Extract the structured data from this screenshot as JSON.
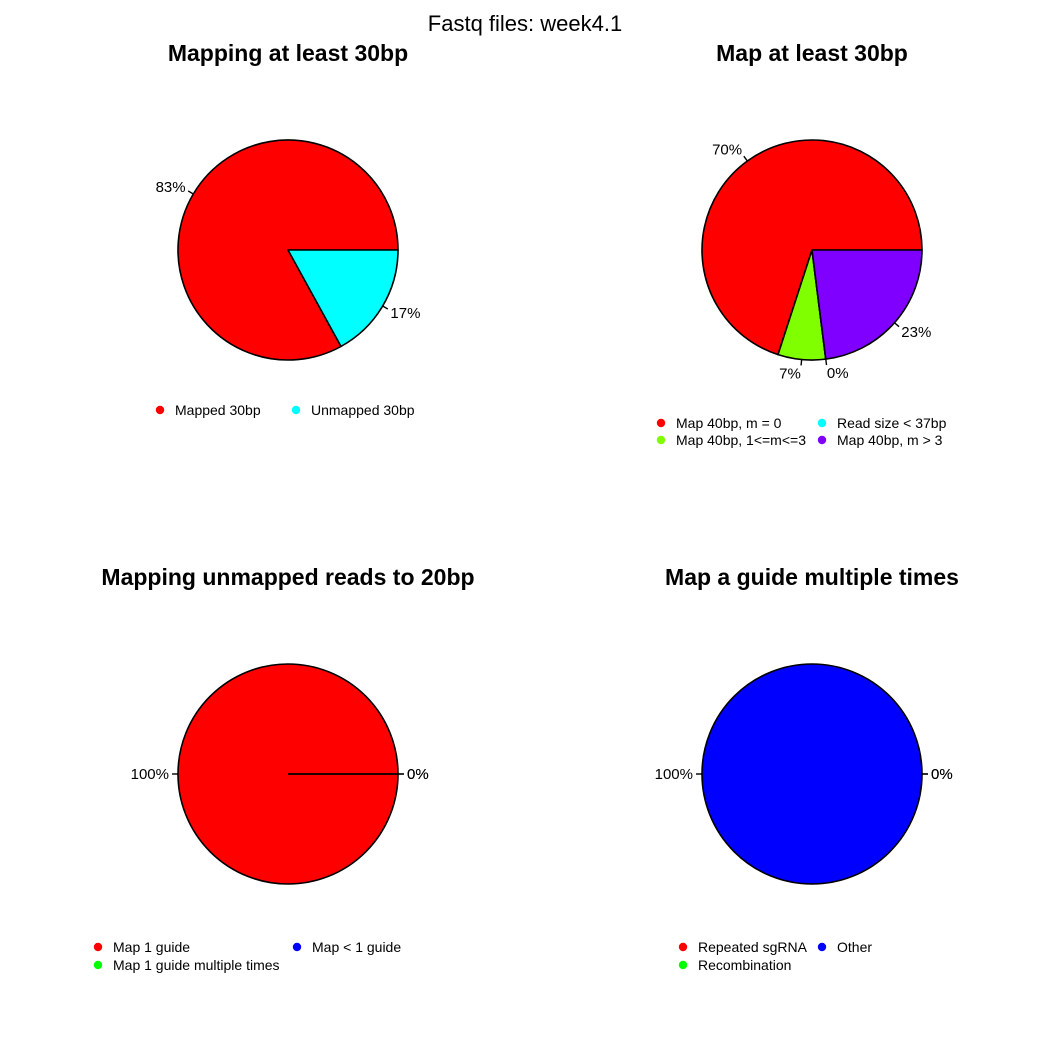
{
  "figure_title": "Fastq files: week4.1",
  "chart_data": [
    {
      "type": "pie",
      "title": "Mapping at least 30bp",
      "slices": [
        {
          "label": "Mapped 30bp",
          "value": 83,
          "pct_label": "83%",
          "color": "#FF0000"
        },
        {
          "label": "Unmapped 30bp",
          "value": 17,
          "pct_label": "17%",
          "color": "#00FFFF"
        }
      ],
      "legend_position": "bottom"
    },
    {
      "type": "pie",
      "title": "Map at least 30bp",
      "slices": [
        {
          "label": "Map 40bp, m = 0",
          "value": 70,
          "pct_label": "70%",
          "color": "#FF0000"
        },
        {
          "label": "Map 40bp, 1<=m<=3",
          "value": 7,
          "pct_label": "7%",
          "color": "#80FF00"
        },
        {
          "label": "Read size < 37bp",
          "value": 0,
          "pct_label": "0%",
          "color": "#00FFFF"
        },
        {
          "label": "Map 40bp, m > 3",
          "value": 23,
          "pct_label": "23%",
          "color": "#8000FF"
        }
      ],
      "legend_position": "bottom"
    },
    {
      "type": "pie",
      "title": "Mapping unmapped reads to 20bp",
      "slices": [
        {
          "label": "Map 1 guide",
          "value": 100,
          "pct_label": "100%",
          "color": "#FF0000"
        },
        {
          "label": "Map 1 guide multiple times",
          "value": 0,
          "pct_label": "0%",
          "color": "#00FF00"
        },
        {
          "label": "Map < 1 guide",
          "value": 0,
          "pct_label": "0%",
          "color": "#0000FF"
        }
      ],
      "legend_position": "bottom"
    },
    {
      "type": "pie",
      "title": "Map a guide multiple times",
      "slices": [
        {
          "label": "Repeated sgRNA",
          "value": 0,
          "pct_label": "0%",
          "color": "#FF0000"
        },
        {
          "label": "Recombination",
          "value": 0,
          "pct_label": "0%",
          "color": "#00FF00"
        },
        {
          "label": "Other",
          "value": 100,
          "pct_label": "100%",
          "color": "#0000FF"
        }
      ],
      "legend_position": "bottom"
    }
  ]
}
